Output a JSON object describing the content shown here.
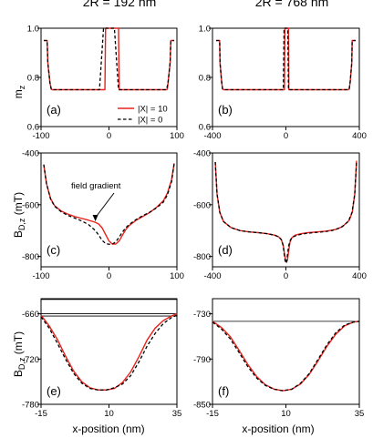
{
  "figure": {
    "col_titles": [
      "2R = 192 nm",
      "2R = 768 nm"
    ],
    "row_ylabels": [
      {
        "main": "m",
        "sub": "z"
      },
      {
        "main": "B",
        "sub": "D,z",
        "suffix": " (mT)"
      },
      {
        "main": "B",
        "sub": "D,z",
        "suffix": " (mT)"
      }
    ],
    "xlabel": "x-position (nm)",
    "legend": [
      "|X| = 10",
      "|X| = 0"
    ],
    "annotation": "field gradient",
    "colors": {
      "red": "#e8221b",
      "black": "#000000"
    }
  },
  "chart_data": [
    {
      "type": "line",
      "panel_label": "(a)",
      "xlim": [
        -100,
        100
      ],
      "ylim": [
        0.6,
        1.0
      ],
      "xticks": [
        "-100",
        "0",
        "100"
      ],
      "yticks": [
        "0.6",
        "0.8",
        "1.0"
      ],
      "series": [
        {
          "name": "|X| = 10",
          "color": "#e8221b",
          "dash": "solid",
          "x": [
            -96,
            -91,
            -90,
            -87,
            -85,
            -84,
            -6,
            -5,
            14,
            15,
            85,
            86,
            87,
            90,
            91,
            96
          ],
          "y": [
            0.95,
            0.95,
            0.86,
            0.78,
            0.753,
            0.75,
            0.75,
            1.0,
            1.0,
            0.75,
            0.75,
            0.753,
            0.78,
            0.86,
            0.95,
            0.95
          ]
        },
        {
          "name": "|X| = 0",
          "color": "#000000",
          "dash": "dashed",
          "x": [
            -96,
            -91,
            -90,
            -87,
            -85,
            -84,
            -14,
            -8,
            8,
            14,
            84,
            85,
            87,
            90,
            91,
            96
          ],
          "y": [
            0.95,
            0.95,
            0.86,
            0.78,
            0.753,
            0.75,
            0.75,
            1.0,
            1.0,
            0.75,
            0.75,
            0.753,
            0.78,
            0.86,
            0.95,
            0.95
          ]
        }
      ]
    },
    {
      "type": "line",
      "panel_label": "(b)",
      "xlim": [
        -400,
        400
      ],
      "ylim": [
        0.6,
        1.0
      ],
      "xticks": [
        "-400",
        "0",
        "400"
      ],
      "yticks": [
        "0.6",
        "0.8",
        "1.0"
      ],
      "series": [
        {
          "name": "|X| = 10",
          "color": "#e8221b",
          "dash": "solid",
          "x": [
            -380,
            -361,
            -359,
            -350,
            -345,
            -340,
            -8,
            -6,
            14,
            16,
            340,
            345,
            350,
            359,
            361,
            380
          ],
          "y": [
            0.95,
            0.95,
            0.86,
            0.78,
            0.753,
            0.75,
            0.75,
            1.0,
            1.0,
            0.75,
            0.75,
            0.753,
            0.78,
            0.86,
            0.95,
            0.95
          ]
        },
        {
          "name": "|X| = 0",
          "color": "#000000",
          "dash": "dashed",
          "x": [
            -380,
            -361,
            -359,
            -350,
            -345,
            -340,
            -14,
            -10,
            10,
            14,
            340,
            345,
            350,
            359,
            361,
            380
          ],
          "y": [
            0.95,
            0.95,
            0.86,
            0.78,
            0.753,
            0.75,
            0.75,
            1.0,
            1.0,
            0.75,
            0.75,
            0.753,
            0.78,
            0.86,
            0.95,
            0.95
          ]
        }
      ]
    },
    {
      "type": "line",
      "panel_label": "(c)",
      "xlim": [
        -100,
        100
      ],
      "ylim": [
        -840,
        -400
      ],
      "xticks": [
        "-100",
        "0",
        "100"
      ],
      "yticks": [
        "-800",
        "-600",
        "-400"
      ],
      "series": [
        {
          "name": "|X| = 10",
          "color": "#e8221b",
          "dash": "solid",
          "x": [
            -96,
            -92,
            -86,
            -80,
            -70,
            -60,
            -50,
            -40,
            -30,
            -20,
            -15,
            -10,
            -5,
            0,
            5,
            10,
            15,
            20,
            25,
            30,
            40,
            50,
            60,
            70,
            80,
            86,
            92,
            96
          ],
          "y": [
            -445,
            -518,
            -576,
            -604,
            -625,
            -637,
            -646,
            -653,
            -660,
            -668,
            -675,
            -690,
            -715,
            -740,
            -752,
            -752,
            -740,
            -717,
            -695,
            -680,
            -660,
            -645,
            -630,
            -610,
            -585,
            -555,
            -505,
            -440
          ]
        },
        {
          "name": "|X| = 0",
          "color": "#000000",
          "dash": "dashed",
          "x": [
            -96,
            -92,
            -86,
            -80,
            -70,
            -60,
            -50,
            -40,
            -30,
            -20,
            -15,
            -10,
            -5,
            0,
            5,
            10,
            15,
            20,
            25,
            30,
            40,
            50,
            60,
            70,
            80,
            86,
            92,
            96
          ],
          "y": [
            -445,
            -518,
            -578,
            -606,
            -628,
            -642,
            -652,
            -663,
            -677,
            -700,
            -718,
            -738,
            -750,
            -753,
            -752,
            -744,
            -725,
            -705,
            -688,
            -676,
            -657,
            -642,
            -629,
            -612,
            -590,
            -562,
            -512,
            -440
          ]
        }
      ]
    },
    {
      "type": "line",
      "panel_label": "(d)",
      "xlim": [
        -400,
        400
      ],
      "ylim": [
        -840,
        -400
      ],
      "xticks": [
        "-400",
        "0",
        "400"
      ],
      "yticks": [
        "-800",
        "-600",
        "-400"
      ],
      "series": [
        {
          "name": "|X| = 10",
          "color": "#e8221b",
          "dash": "solid",
          "x": [
            -385,
            -375,
            -360,
            -340,
            -300,
            -250,
            -200,
            -150,
            -100,
            -60,
            -40,
            -25,
            -15,
            -8,
            -2,
            3,
            8,
            14,
            22,
            32,
            50,
            80,
            120,
            170,
            220,
            270,
            310,
            345,
            362,
            375,
            385
          ],
          "y": [
            -435,
            -560,
            -630,
            -665,
            -688,
            -700,
            -705,
            -708,
            -712,
            -718,
            -724,
            -735,
            -755,
            -790,
            -815,
            -822,
            -815,
            -785,
            -745,
            -728,
            -718,
            -712,
            -708,
            -705,
            -702,
            -696,
            -684,
            -660,
            -628,
            -560,
            -430
          ]
        },
        {
          "name": "|X| = 0",
          "color": "#000000",
          "dash": "dashed",
          "x": [
            -385,
            -375,
            -360,
            -340,
            -300,
            -250,
            -200,
            -150,
            -100,
            -60,
            -40,
            -25,
            -15,
            -8,
            -3,
            0,
            3,
            8,
            15,
            25,
            40,
            60,
            100,
            150,
            200,
            250,
            300,
            340,
            360,
            375,
            385
          ],
          "y": [
            -435,
            -560,
            -630,
            -665,
            -688,
            -700,
            -705,
            -708,
            -712,
            -718,
            -724,
            -735,
            -758,
            -797,
            -822,
            -826,
            -822,
            -797,
            -758,
            -735,
            -724,
            -718,
            -712,
            -708,
            -705,
            -700,
            -688,
            -665,
            -630,
            -560,
            -435
          ]
        }
      ]
    },
    {
      "type": "line",
      "panel_label": "(e)",
      "xlim": [
        -15,
        35
      ],
      "ylim": [
        -780,
        -640
      ],
      "xticks": [
        "-15",
        "10",
        "35"
      ],
      "yticks": [
        "-780",
        "-720",
        "-660"
      ],
      "series": [
        {
          "name": "|X| = 10",
          "color": "#e8221b",
          "dash": "solid",
          "x": [
            -15,
            -12,
            -9,
            -6,
            -3,
            0,
            3,
            6,
            9,
            12,
            15,
            18,
            21,
            24,
            27,
            30,
            33,
            35
          ],
          "y": [
            -662,
            -676,
            -694,
            -716,
            -736,
            -750,
            -758,
            -761,
            -761,
            -759,
            -751,
            -737,
            -717,
            -695,
            -679,
            -669,
            -663,
            -660
          ]
        },
        {
          "name": "|X| = 0",
          "color": "#000000",
          "dash": "dashed",
          "x": [
            -15,
            -12,
            -9,
            -6,
            -3,
            0,
            3,
            6,
            9,
            12,
            15,
            18,
            21,
            24,
            27,
            30,
            33,
            35
          ],
          "y": [
            -664,
            -679,
            -699,
            -720,
            -739,
            -752,
            -759,
            -761,
            -761,
            -758,
            -753,
            -742,
            -724,
            -703,
            -686,
            -673,
            -665,
            -662
          ]
        }
      ],
      "hlines": [
        -641,
        -660,
        -663
      ]
    },
    {
      "type": "line",
      "panel_label": "(f)",
      "xlim": [
        -15,
        35
      ],
      "ylim": [
        -850,
        -710
      ],
      "xticks": [
        "-15",
        "10",
        "35"
      ],
      "yticks": [
        "-850",
        "-790",
        "-730"
      ],
      "series": [
        {
          "name": "|X| = 10",
          "color": "#e8221b",
          "dash": "solid",
          "x": [
            -15,
            -12,
            -9,
            -6,
            -3,
            0,
            3,
            6,
            9,
            12,
            15,
            18,
            21,
            24,
            27,
            30,
            33,
            35
          ],
          "y": [
            -740,
            -748,
            -760,
            -778,
            -797,
            -813,
            -824,
            -830,
            -832,
            -830,
            -823,
            -810,
            -792,
            -773,
            -757,
            -746,
            -741,
            -740
          ]
        },
        {
          "name": "|X| = 0",
          "color": "#000000",
          "dash": "dashed",
          "x": [
            -15,
            -12,
            -9,
            -6,
            -3,
            0,
            3,
            6,
            9,
            12,
            15,
            18,
            21,
            24,
            27,
            30,
            33,
            35
          ],
          "y": [
            -741,
            -750,
            -763,
            -781,
            -800,
            -815,
            -825,
            -830,
            -832,
            -830,
            -822,
            -809,
            -790,
            -771,
            -755,
            -745,
            -741,
            -740
          ]
        }
      ],
      "hlines": [
        -740
      ]
    }
  ]
}
